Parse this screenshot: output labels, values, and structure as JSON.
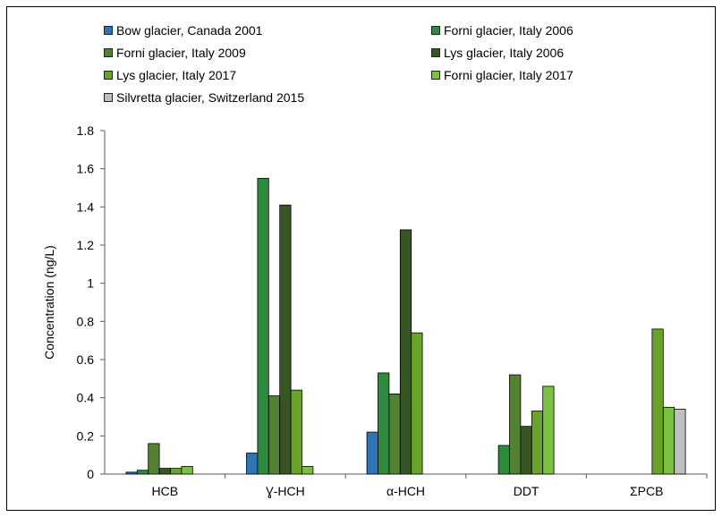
{
  "chart_data": {
    "type": "bar",
    "categories": [
      "HCB",
      "Ɣ-HCH",
      "α-HCH",
      "DDT",
      "ΣPCB"
    ],
    "series": [
      {
        "name": "Bow glacier, Canada 2001",
        "color": "#2e75b6",
        "values": [
          0.01,
          0.11,
          0.22,
          null,
          null
        ]
      },
      {
        "name": "Forni glacier, Italy 2006",
        "color": "#2e8b3e",
        "values": [
          0.02,
          1.55,
          0.53,
          0.15,
          null
        ]
      },
      {
        "name": "Forni glacier, Italy 2009",
        "color": "#548235",
        "values": [
          0.16,
          0.41,
          0.42,
          0.52,
          null
        ]
      },
      {
        "name": "Lys glacier, Italy 2006",
        "color": "#375623",
        "values": [
          0.03,
          1.41,
          1.28,
          0.25,
          null
        ]
      },
      {
        "name": "Lys glacier, Italy 2017",
        "color": "#6aa32c",
        "values": [
          0.03,
          0.44,
          0.74,
          0.33,
          0.76
        ]
      },
      {
        "name": "Forni glacier, Italy 2017",
        "color": "#7cbf42",
        "values": [
          0.04,
          0.04,
          null,
          0.46,
          0.35
        ]
      },
      {
        "name": "Silvretta glacier, Switzerland 2015",
        "color": "#bfbfbf",
        "values": [
          null,
          null,
          null,
          null,
          0.34
        ]
      }
    ],
    "ylabel": "Concentration (ng/L)",
    "xlabel": "",
    "ylim": [
      0,
      1.8
    ],
    "yticks": [
      "0",
      "0.2",
      "0.4",
      "0.6",
      "0.8",
      "1",
      "1.2",
      "1.4",
      "1.6",
      "1.8"
    ],
    "grid": false,
    "legend_position": "top"
  }
}
